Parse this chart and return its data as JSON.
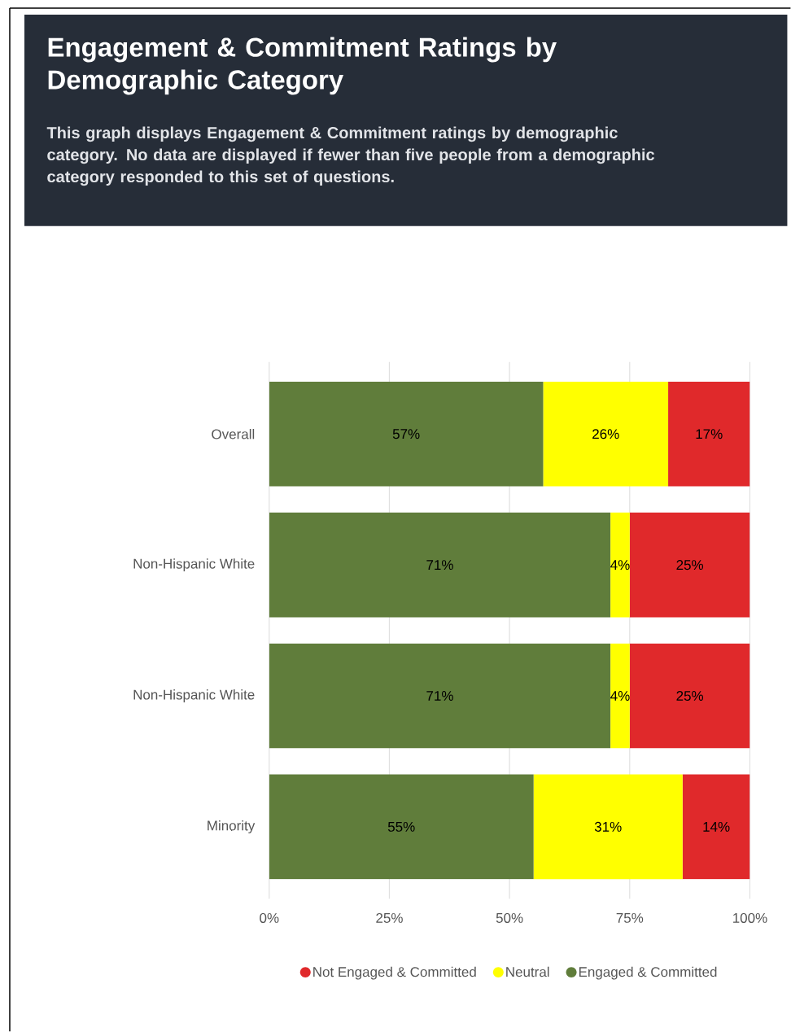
{
  "chart_data": {
    "type": "bar",
    "orientation": "horizontal",
    "stacked": true,
    "title": "Engagement & Commitment Ratings by Demographic Category",
    "subtitle": "This graph displays Engagement & Commitment ratings by demographic category. No data are displayed if fewer than five people from a demographic category responded to this set of questions.",
    "categories": [
      "Overall",
      "Non-Hispanic White",
      "Non-Hispanic White",
      "Minority"
    ],
    "series": [
      {
        "name": "Engaged & Committed",
        "color": "#607d3b",
        "values": [
          57,
          71,
          71,
          55
        ],
        "value_labels": [
          "57%",
          "71%",
          "71%",
          "55%"
        ]
      },
      {
        "name": "Neutral",
        "color": "#ffff00",
        "values": [
          26,
          4,
          4,
          31
        ],
        "value_labels": [
          "26%",
          "4%",
          "4%",
          "31%"
        ]
      },
      {
        "name": "Not Engaged & Committed",
        "color": "#e0292b",
        "values": [
          17,
          25,
          25,
          14
        ],
        "value_labels": [
          "17%",
          "25%",
          "25%",
          "14%"
        ]
      }
    ],
    "xlim": [
      0,
      100
    ],
    "xticks": [
      {
        "value": 0,
        "label": "0%"
      },
      {
        "value": 25,
        "label": "25%"
      },
      {
        "value": 50,
        "label": "50%"
      },
      {
        "value": 75,
        "label": "75%"
      },
      {
        "value": 100,
        "label": "100%"
      }
    ],
    "grid": "x",
    "legend": "bottom"
  }
}
